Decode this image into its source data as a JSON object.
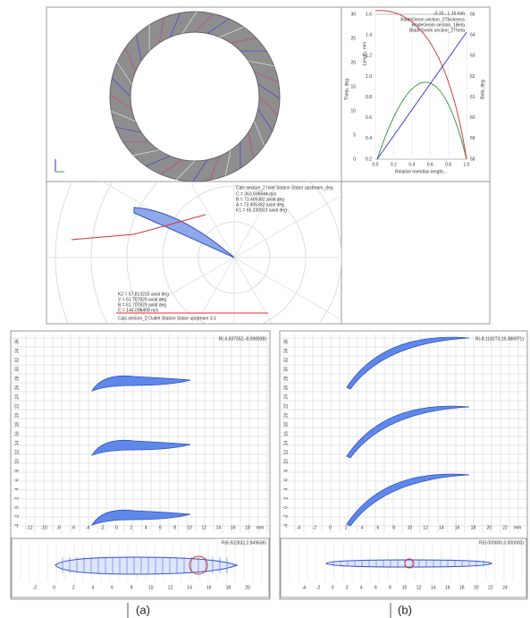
{
  "ring_view": {},
  "theta_plot": {
    "readout": "-0.33 , 1.16 mm",
    "legend": [
      "BladeGeom section_2Thickness",
      "BladeGeom section_1Beta",
      "BladeGeom section_2Theta"
    ],
    "x_label": "Relative meridian length, -",
    "y_label_left": "Theta, deg",
    "y_label_mid": "Length, mm",
    "y_label_right": "Beta, deg",
    "x_ticks": [
      "0.0",
      "0.2",
      "0.4",
      "0.6",
      "0.8",
      "1.0"
    ],
    "y_left_ticks": [
      "30",
      "25",
      "20",
      "15",
      "10",
      "5",
      "0"
    ],
    "y_mid_ticks": [
      "1.6",
      "1.4",
      "1.2",
      "1.0",
      "0.8",
      "0.6",
      "0.4",
      "0.2"
    ],
    "y_right_ticks": [
      "65",
      "64",
      "63",
      "62",
      "61",
      "60",
      "59",
      "58"
    ]
  },
  "polar": {
    "inlet_title": "Calc section_2 Inlet Station Stator upstream_deg",
    "inlet_lines": [
      "C = 363.696644 m/s",
      "B = 73.405382 axial deg",
      "A = 73.405382 axial deg",
      "K1 = 65.230923 axial deg"
    ],
    "outlet_lines": [
      "K2 = 57.813233 axial deg",
      "V = 61.707829 axial deg",
      "B = 61.707829 axial deg",
      "C = 144.096408 m/s"
    ],
    "outlet_title": "Calc section_2 Outlet Station Stator upstream 3-1"
  },
  "panel_a": {
    "readout_top": "R(-6.637552,-8.098938)",
    "readout_bottom": "R(6.932832,2.849636)",
    "x_ticks": [
      "-12",
      "-10",
      "-8",
      "-6",
      "-4",
      "-2",
      "0",
      "2",
      "4",
      "6",
      "8",
      "10",
      "12",
      "14",
      "16",
      "18"
    ],
    "y_ticks": [
      "36",
      "34",
      "32",
      "30",
      "28",
      "26",
      "24",
      "22",
      "20",
      "18",
      "16",
      "14",
      "12",
      "10",
      "8",
      "6",
      "4",
      "2",
      "0",
      "-2",
      "-4"
    ],
    "small_x_ticks": [
      "-2",
      "0",
      "2",
      "4",
      "6",
      "8",
      "10",
      "12",
      "14",
      "16",
      "18",
      "20"
    ],
    "unit": "mm",
    "label": "(a)"
  },
  "panel_b": {
    "readout_top": "R(-8.118273,19.386971)",
    "readout_bottom": "R(0.000000,0.000000)",
    "x_ticks": [
      "-4",
      "-2",
      "0",
      "2",
      "4",
      "6",
      "8",
      "10",
      "12",
      "14",
      "16",
      "18",
      "20",
      "22"
    ],
    "y_ticks": [
      "36",
      "34",
      "32",
      "30",
      "28",
      "26",
      "24",
      "22",
      "20",
      "18",
      "16",
      "14",
      "12",
      "10",
      "8",
      "6",
      "4",
      "2",
      "0",
      "-2",
      "-4"
    ],
    "small_x_ticks": [
      "-4",
      "-2",
      "0",
      "2",
      "4",
      "6",
      "8",
      "10",
      "12",
      "14",
      "16",
      "18",
      "20",
      "22",
      "24"
    ],
    "unit": "mm",
    "label": "(b)"
  }
}
